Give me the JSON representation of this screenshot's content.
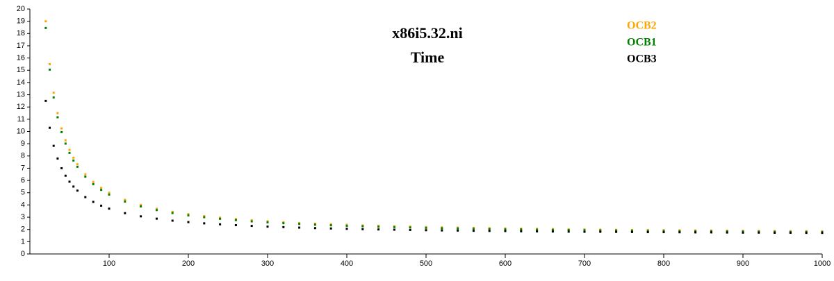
{
  "chart_data": {
    "type": "scatter",
    "title": "x86i5.32.ni",
    "subtitle": "Time",
    "x": [
      20,
      25,
      30,
      35,
      40,
      45,
      50,
      55,
      60,
      70,
      80,
      90,
      100,
      120,
      140,
      160,
      180,
      200,
      220,
      240,
      260,
      280,
      300,
      320,
      340,
      360,
      380,
      400,
      420,
      440,
      460,
      480,
      500,
      520,
      540,
      560,
      580,
      600,
      620,
      640,
      660,
      680,
      700,
      720,
      740,
      760,
      780,
      800,
      820,
      840,
      860,
      880,
      900,
      920,
      940,
      960,
      980,
      1000
    ],
    "series": [
      {
        "name": "OCB2",
        "color": "#ffa500",
        "values": [
          19.0,
          15.5,
          13.17,
          11.5,
          10.25,
          9.28,
          8.5,
          7.86,
          7.33,
          6.5,
          5.88,
          5.39,
          5.0,
          4.42,
          4.0,
          3.69,
          3.44,
          3.25,
          3.09,
          2.96,
          2.85,
          2.75,
          2.67,
          2.59,
          2.53,
          2.47,
          2.42,
          2.38,
          2.33,
          2.3,
          2.26,
          2.23,
          2.2,
          2.17,
          2.15,
          2.13,
          2.1,
          2.08,
          2.06,
          2.05,
          2.03,
          2.01,
          2.0,
          1.99,
          1.97,
          1.96,
          1.95,
          1.94,
          1.93,
          1.92,
          1.91,
          1.9,
          1.89,
          1.88,
          1.87,
          1.86,
          1.86,
          1.85
        ]
      },
      {
        "name": "OCB1",
        "color": "#008000",
        "values": [
          18.45,
          15.05,
          12.78,
          11.16,
          9.95,
          9.01,
          8.25,
          7.63,
          7.12,
          6.31,
          5.7,
          5.23,
          4.85,
          4.28,
          3.88,
          3.58,
          3.34,
          3.15,
          3.0,
          2.87,
          2.76,
          2.66,
          2.58,
          2.51,
          2.45,
          2.39,
          2.34,
          2.3,
          2.26,
          2.22,
          2.19,
          2.16,
          2.13,
          2.1,
          2.08,
          2.06,
          2.04,
          2.02,
          2.0,
          1.98,
          1.97,
          1.95,
          1.94,
          1.92,
          1.91,
          1.9,
          1.89,
          1.88,
          1.86,
          1.85,
          1.85,
          1.84,
          1.83,
          1.82,
          1.81,
          1.8,
          1.8,
          1.79
        ]
      },
      {
        "name": "OCB3",
        "color": "#000000",
        "values": [
          12.5,
          10.3,
          8.83,
          7.79,
          7.0,
          6.39,
          5.9,
          5.5,
          5.17,
          4.64,
          4.25,
          3.94,
          3.7,
          3.33,
          3.07,
          2.88,
          2.72,
          2.6,
          2.5,
          2.42,
          2.35,
          2.29,
          2.23,
          2.19,
          2.15,
          2.11,
          2.08,
          2.05,
          2.02,
          2.0,
          1.98,
          1.96,
          1.94,
          1.92,
          1.91,
          1.89,
          1.88,
          1.87,
          1.85,
          1.84,
          1.83,
          1.82,
          1.81,
          1.81,
          1.8,
          1.79,
          1.78,
          1.78,
          1.77,
          1.76,
          1.76,
          1.75,
          1.74,
          1.74,
          1.73,
          1.73,
          1.72,
          1.72
        ]
      }
    ],
    "xlim": [
      0,
      1000
    ],
    "xticks": [
      100,
      200,
      300,
      400,
      500,
      600,
      700,
      800,
      900,
      1000
    ],
    "ylim": [
      0,
      20
    ],
    "yticks": [
      0,
      1,
      2,
      3,
      4,
      5,
      6,
      7,
      8,
      9,
      10,
      11,
      12,
      13,
      14,
      15,
      16,
      17,
      18,
      19,
      20
    ]
  }
}
